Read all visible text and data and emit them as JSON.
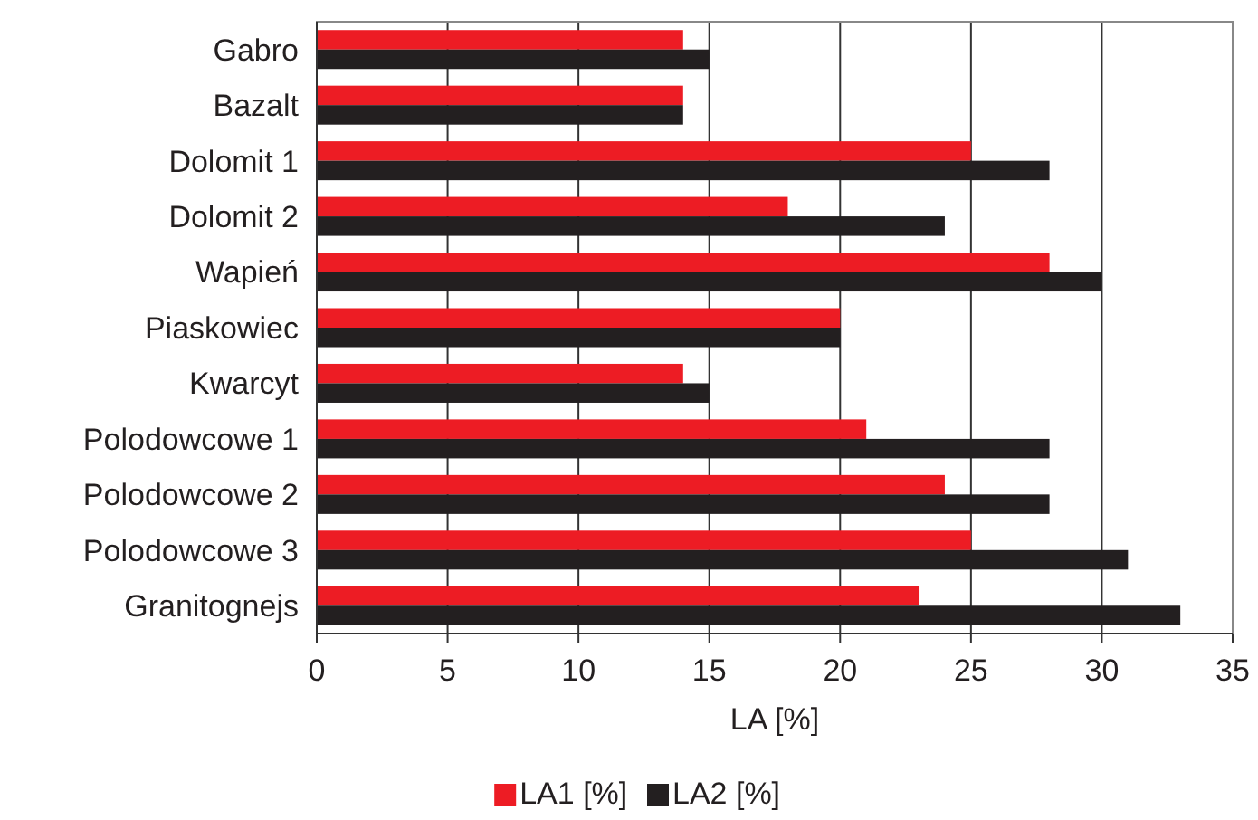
{
  "chart_data": {
    "type": "bar",
    "orientation": "horizontal",
    "xlabel": "LA [%]",
    "categories": [
      "Gabro",
      "Bazalt",
      "Dolomit 1",
      "Dolomit 2",
      "Wapień",
      "Piaskowiec",
      "Kwarcyt",
      "Polodowcowe 1",
      "Polodowcowe 2",
      "Polodowcowe 3",
      "Granitognejs"
    ],
    "series": [
      {
        "name": "LA1 [%]",
        "color": "#ed1c24",
        "values": [
          14,
          14,
          25,
          18,
          28,
          20,
          14,
          21,
          24,
          25,
          23
        ]
      },
      {
        "name": "LA2 [%]",
        "color": "#231f20",
        "values": [
          15,
          14,
          28,
          24,
          30,
          20,
          15,
          28,
          28,
          31,
          33
        ]
      }
    ],
    "xlim": [
      0,
      35
    ],
    "xticks": [
      0,
      5,
      10,
      15,
      20,
      25,
      30,
      35
    ],
    "grid": "x",
    "legend": "bottom"
  }
}
